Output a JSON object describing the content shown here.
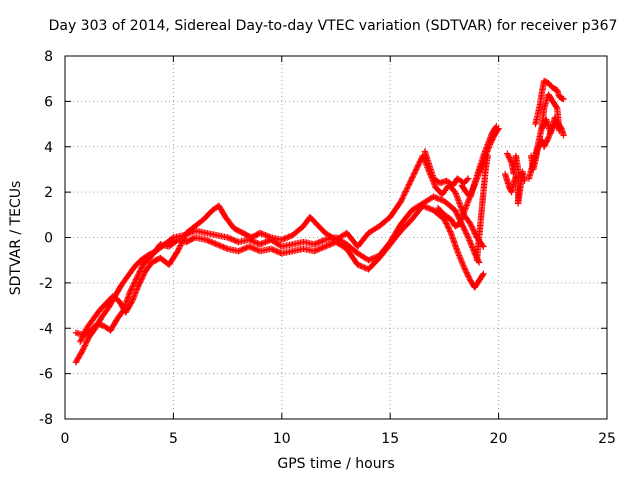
{
  "chart_data": {
    "type": "scatter",
    "title": "Day 303 of 2014, Sidereal Day-to-day VTEC variation (SDTVAR) for receiver p367",
    "xlabel": "GPS time / hours",
    "ylabel": "SDTVAR / TECUs",
    "xlim": [
      0,
      25
    ],
    "ylim": [
      -8,
      8
    ],
    "xticks": [
      0,
      5,
      10,
      15,
      20,
      25
    ],
    "yticks": [
      -8,
      -6,
      -4,
      -2,
      0,
      2,
      4,
      6,
      8
    ],
    "grid": true,
    "marker": "+",
    "color": "#ff0000",
    "series": [
      {
        "name": "SDTVAR",
        "tracks": [
          [
            [
              0.5,
              -5.5
            ],
            [
              0.8,
              -5.0
            ],
            [
              1.1,
              -4.4
            ],
            [
              1.4,
              -4.0
            ],
            [
              1.7,
              -3.5
            ],
            [
              2.0,
              -3.1
            ],
            [
              2.3,
              -2.6
            ],
            [
              2.6,
              -2.1
            ],
            [
              2.9,
              -1.7
            ],
            [
              3.2,
              -1.3
            ],
            [
              3.5,
              -1.0
            ],
            [
              3.8,
              -0.8
            ],
            [
              4.2,
              -0.6
            ],
            [
              4.6,
              -0.3
            ],
            [
              5.0,
              0.0
            ],
            [
              5.5,
              0.1
            ],
            [
              6.0,
              0.3
            ],
            [
              6.5,
              0.2
            ],
            [
              7.0,
              0.1
            ],
            [
              7.5,
              0.0
            ],
            [
              8.0,
              -0.2
            ],
            [
              8.5,
              -0.1
            ],
            [
              9.0,
              -0.3
            ],
            [
              9.5,
              -0.1
            ],
            [
              10.0,
              -0.4
            ],
            [
              10.5,
              -0.3
            ],
            [
              11.0,
              -0.2
            ],
            [
              11.5,
              -0.3
            ],
            [
              12.0,
              -0.1
            ],
            [
              12.5,
              0.0
            ],
            [
              13.0,
              -0.3
            ],
            [
              13.5,
              -0.7
            ],
            [
              14.0,
              -1.0
            ],
            [
              14.5,
              -0.8
            ],
            [
              15.0,
              -0.2
            ],
            [
              15.5,
              0.6
            ],
            [
              16.0,
              1.2
            ],
            [
              16.5,
              1.5
            ],
            [
              17.0,
              1.8
            ],
            [
              17.5,
              1.6
            ],
            [
              18.0,
              1.2
            ],
            [
              18.3,
              0.6
            ],
            [
              18.6,
              0.0
            ],
            [
              18.9,
              -0.7
            ],
            [
              19.1,
              -1.1
            ]
          ],
          [
            [
              0.5,
              -4.2
            ],
            [
              0.9,
              -4.3
            ],
            [
              1.2,
              -4.1
            ],
            [
              1.5,
              -3.8
            ],
            [
              1.8,
              -3.9
            ],
            [
              2.1,
              -4.1
            ],
            [
              2.4,
              -3.6
            ],
            [
              2.7,
              -3.2
            ],
            [
              3.0,
              -2.4
            ],
            [
              3.3,
              -1.8
            ],
            [
              3.6,
              -1.2
            ],
            [
              4.0,
              -0.8
            ],
            [
              4.4,
              -0.3
            ],
            [
              4.8,
              -0.4
            ],
            [
              5.2,
              -0.1
            ],
            [
              5.6,
              -0.2
            ],
            [
              6.0,
              0.0
            ],
            [
              6.5,
              -0.1
            ],
            [
              7.0,
              -0.3
            ],
            [
              7.5,
              -0.5
            ],
            [
              8.0,
              -0.6
            ],
            [
              8.5,
              -0.4
            ],
            [
              9.0,
              -0.6
            ],
            [
              9.5,
              -0.5
            ],
            [
              10.0,
              -0.7
            ],
            [
              10.5,
              -0.6
            ],
            [
              11.0,
              -0.5
            ],
            [
              11.5,
              -0.6
            ],
            [
              12.0,
              -0.4
            ],
            [
              12.5,
              -0.2
            ],
            [
              13.0,
              -0.5
            ],
            [
              13.5,
              -1.2
            ],
            [
              14.0,
              -1.4
            ],
            [
              14.5,
              -0.9
            ],
            [
              15.0,
              -0.3
            ],
            [
              15.5,
              0.3
            ],
            [
              16.0,
              0.8
            ],
            [
              16.5,
              1.4
            ],
            [
              17.0,
              1.2
            ],
            [
              17.5,
              0.8
            ],
            [
              17.8,
              0.2
            ],
            [
              18.1,
              -0.6
            ],
            [
              18.4,
              -1.3
            ],
            [
              18.7,
              -1.9
            ],
            [
              18.9,
              -2.2
            ],
            [
              19.1,
              -1.9
            ],
            [
              19.3,
              -1.6
            ]
          ],
          [
            [
              0.7,
              -4.6
            ],
            [
              1.0,
              -4.0
            ],
            [
              1.3,
              -3.6
            ],
            [
              1.6,
              -3.2
            ],
            [
              1.9,
              -2.9
            ],
            [
              2.2,
              -2.6
            ],
            [
              2.5,
              -2.8
            ],
            [
              2.8,
              -3.3
            ],
            [
              3.1,
              -2.8
            ],
            [
              3.4,
              -2.1
            ],
            [
              3.7,
              -1.5
            ],
            [
              4.0,
              -1.1
            ],
            [
              4.4,
              -0.9
            ],
            [
              4.8,
              -1.2
            ],
            [
              5.2,
              -0.6
            ],
            [
              5.6,
              0.2
            ],
            [
              6.0,
              0.5
            ],
            [
              6.4,
              0.8
            ],
            [
              6.8,
              1.2
            ],
            [
              7.1,
              1.4
            ],
            [
              7.4,
              0.9
            ],
            [
              7.8,
              0.4
            ],
            [
              8.2,
              0.2
            ],
            [
              8.6,
              0.0
            ],
            [
              9.0,
              0.2
            ],
            [
              9.5,
              0.0
            ],
            [
              10.0,
              -0.1
            ],
            [
              10.5,
              0.1
            ],
            [
              11.0,
              0.5
            ],
            [
              11.3,
              0.9
            ],
            [
              11.6,
              0.6
            ],
            [
              12.0,
              0.2
            ],
            [
              12.5,
              -0.1
            ],
            [
              13.0,
              0.2
            ],
            [
              13.5,
              -0.4
            ],
            [
              14.0,
              0.2
            ],
            [
              14.5,
              0.5
            ],
            [
              15.0,
              0.9
            ],
            [
              15.5,
              1.6
            ],
            [
              15.9,
              2.4
            ],
            [
              16.2,
              3.0
            ],
            [
              16.5,
              3.6
            ],
            [
              16.8,
              2.9
            ],
            [
              17.1,
              2.2
            ],
            [
              17.4,
              1.9
            ],
            [
              17.7,
              2.3
            ],
            [
              18.0,
              2.0
            ],
            [
              18.2,
              1.5
            ],
            [
              18.4,
              1.0
            ],
            [
              18.7,
              0.6
            ],
            [
              19.0,
              0.0
            ],
            [
              19.3,
              -0.4
            ]
          ],
          [
            [
              17.2,
              1.3
            ],
            [
              17.5,
              1.0
            ],
            [
              17.8,
              0.8
            ],
            [
              18.0,
              0.5
            ],
            [
              18.2,
              0.6
            ],
            [
              18.4,
              1.1
            ],
            [
              18.6,
              1.6
            ],
            [
              18.8,
              2.1
            ],
            [
              19.0,
              2.6
            ],
            [
              19.2,
              3.1
            ],
            [
              19.4,
              3.6
            ],
            [
              19.6,
              4.1
            ],
            [
              19.8,
              4.5
            ],
            [
              20.0,
              4.8
            ]
          ],
          [
            [
              18.3,
              2.3
            ],
            [
              18.5,
              2.0
            ],
            [
              18.7,
              1.8
            ],
            [
              18.9,
              2.4
            ],
            [
              19.1,
              3.0
            ],
            [
              19.3,
              3.6
            ],
            [
              19.5,
              4.1
            ],
            [
              19.7,
              4.6
            ],
            [
              19.9,
              4.9
            ]
          ],
          [
            [
              16.6,
              3.8
            ],
            [
              16.8,
              3.2
            ],
            [
              17.0,
              2.6
            ],
            [
              17.3,
              2.4
            ],
            [
              17.6,
              2.5
            ],
            [
              17.9,
              2.3
            ],
            [
              18.1,
              2.6
            ],
            [
              18.4,
              2.4
            ],
            [
              18.6,
              2.6
            ]
          ],
          [
            [
              19.0,
              -1.0
            ],
            [
              19.1,
              0.0
            ],
            [
              19.2,
              1.0
            ],
            [
              19.3,
              2.0
            ],
            [
              19.4,
              3.0
            ],
            [
              19.5,
              3.6
            ]
          ],
          [
            [
              20.4,
              3.7
            ],
            [
              20.6,
              3.3
            ],
            [
              20.7,
              2.8
            ],
            [
              20.8,
              3.6
            ],
            [
              20.9,
              3.0
            ],
            [
              20.9,
              1.5
            ],
            [
              21.0,
              2.2
            ],
            [
              21.1,
              2.9
            ],
            [
              21.2,
              2.5
            ]
          ],
          [
            [
              20.3,
              2.8
            ],
            [
              20.4,
              2.5
            ],
            [
              20.5,
              2.2
            ],
            [
              20.6,
              2.0
            ],
            [
              20.7,
              2.4
            ],
            [
              20.8,
              2.7
            ]
          ],
          [
            [
              21.4,
              2.6
            ],
            [
              21.6,
              3.3
            ],
            [
              21.8,
              4.0
            ],
            [
              22.0,
              4.9
            ],
            [
              22.1,
              5.7
            ],
            [
              22.3,
              6.3
            ],
            [
              22.5,
              6.0
            ],
            [
              22.7,
              5.7
            ],
            [
              22.8,
              4.8
            ]
          ],
          [
            [
              21.5,
              3.6
            ],
            [
              21.6,
              3.0
            ],
            [
              21.7,
              3.4
            ],
            [
              21.8,
              3.9
            ],
            [
              22.0,
              4.3
            ],
            [
              22.1,
              4.0
            ],
            [
              22.3,
              4.4
            ],
            [
              22.5,
              4.9
            ],
            [
              22.7,
              5.1
            ],
            [
              22.9,
              4.8
            ],
            [
              23.0,
              4.5
            ]
          ],
          [
            [
              21.7,
              5.0
            ],
            [
              21.9,
              5.8
            ],
            [
              22.0,
              6.4
            ],
            [
              22.1,
              6.9
            ],
            [
              22.3,
              6.8
            ],
            [
              22.5,
              6.6
            ],
            [
              22.7,
              6.5
            ],
            [
              22.8,
              6.2
            ],
            [
              23.0,
              6.1
            ]
          ],
          [
            [
              22.0,
              4.8
            ],
            [
              22.2,
              5.2
            ],
            [
              22.4,
              4.6
            ],
            [
              22.6,
              5.3
            ],
            [
              22.8,
              4.7
            ]
          ]
        ]
      }
    ]
  }
}
